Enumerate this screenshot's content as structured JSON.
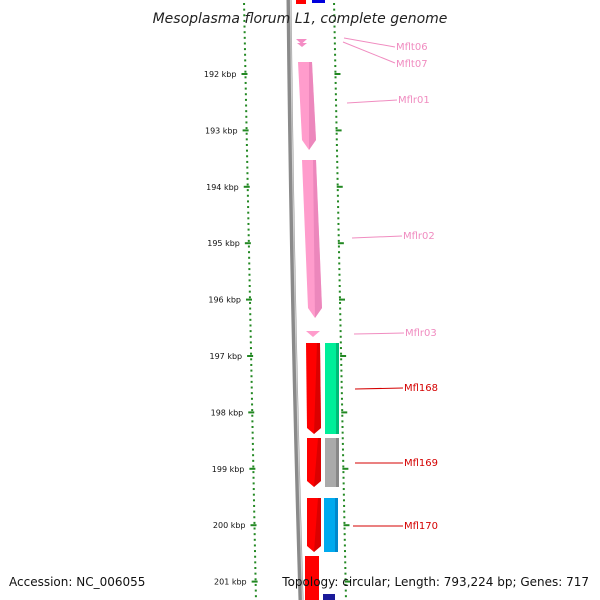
{
  "title": "Mesoplasma florum L1, complete genome",
  "footer": {
    "accession": "Accession: NC_006055",
    "topology": "Topology: circular; Length: 793,224 bp; Genes: 717"
  },
  "colors": {
    "rna_label": "#f08cc0",
    "cds_label": "#d40000",
    "rna_feature": "#ff9ccc",
    "cds_feature": "#ff0000",
    "cog_green": "#00ee99",
    "cog_grey": "#aaaaaa",
    "cog_cyan": "#00aaee",
    "ticks": "#228822",
    "backbone": "#777777"
  },
  "kbp_ticks": [
    {
      "kbp": 192,
      "label": "192 kbp"
    },
    {
      "kbp": 193,
      "label": "193 kbp"
    },
    {
      "kbp": 194,
      "label": "194 kbp"
    },
    {
      "kbp": 195,
      "label": "195 kbp"
    },
    {
      "kbp": 196,
      "label": "196 kbp"
    },
    {
      "kbp": 197,
      "label": "197 kbp"
    },
    {
      "kbp": 198,
      "label": "198 kbp"
    },
    {
      "kbp": 199,
      "label": "199 kbp"
    },
    {
      "kbp": 200,
      "label": "200 kbp"
    },
    {
      "kbp": 201,
      "label": "201 kbp"
    }
  ],
  "genes": [
    {
      "name": "Mflt06",
      "type": "tRNA"
    },
    {
      "name": "Mflt07",
      "type": "tRNA"
    },
    {
      "name": "Mflr01",
      "type": "rRNA"
    },
    {
      "name": "Mflr02",
      "type": "rRNA"
    },
    {
      "name": "Mflr03",
      "type": "rRNA"
    },
    {
      "name": "Mfl168",
      "type": "CDS"
    },
    {
      "name": "Mfl169",
      "type": "CDS"
    },
    {
      "name": "Mfl170",
      "type": "CDS"
    }
  ]
}
